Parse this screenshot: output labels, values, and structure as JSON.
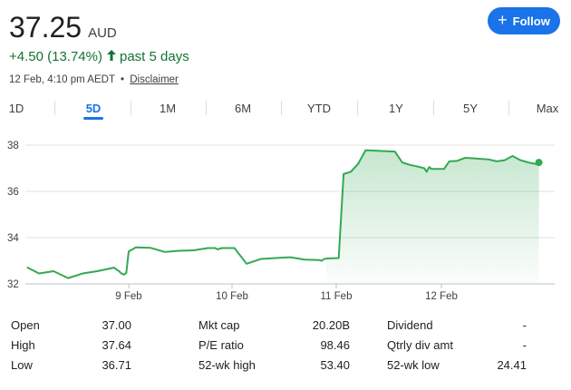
{
  "quote": {
    "price": "37.25",
    "currency": "AUD",
    "change": "+4.50 (13.74%)",
    "change_period": "past 5 days",
    "timestamp": "12 Feb, 4:10 pm AEDT",
    "separator": "•",
    "disclaimer": "Disclaimer",
    "up_color": "#137333"
  },
  "follow_button": {
    "label": "Follow",
    "icon": "plus-icon",
    "color": "#1a73e8"
  },
  "tabs": [
    {
      "label": "1D",
      "active": false
    },
    {
      "label": "5D",
      "active": true
    },
    {
      "label": "1M",
      "active": false
    },
    {
      "label": "6M",
      "active": false
    },
    {
      "label": "YTD",
      "active": false
    },
    {
      "label": "1Y",
      "active": false
    },
    {
      "label": "5Y",
      "active": false
    },
    {
      "label": "Max",
      "active": false
    }
  ],
  "chart_data": {
    "type": "area",
    "title": "",
    "xlabel": "",
    "ylabel": "",
    "ylim": [
      32,
      38.8
    ],
    "yticks": [
      "32",
      "34",
      "36",
      "38"
    ],
    "xticks": [
      "9 Feb",
      "10 Feb",
      "11 Feb",
      "12 Feb"
    ],
    "line_color": "#34a853",
    "grid": true,
    "series": [
      {
        "points": [
          [
            "6 Feb 10:10",
            32.72
          ],
          [
            "6 Feb 11:00",
            32.45
          ],
          [
            "6 Feb 12:00",
            32.55
          ],
          [
            "6 Feb 13:00",
            32.25
          ],
          [
            "6 Feb 14:00",
            32.45
          ],
          [
            "6 Feb 15:00",
            32.55
          ],
          [
            "6 Feb 16:00",
            32.68
          ],
          [
            "6 Feb 16:10",
            32.7
          ],
          [
            "6 Feb 16:20",
            32.62
          ],
          [
            "6 Feb 16:30",
            32.55
          ],
          [
            "6 Feb 16:40",
            32.45
          ],
          [
            "6 Feb 16:50",
            32.4
          ],
          [
            "6 Feb 17:00",
            32.47
          ],
          [
            "6 Feb 17:10",
            33.4
          ],
          [
            "9 Feb 10:30",
            33.58
          ],
          [
            "9 Feb 11:30",
            33.56
          ],
          [
            "9 Feb 12:30",
            33.38
          ],
          [
            "9 Feb 13:30",
            33.43
          ],
          [
            "9 Feb 14:30",
            33.45
          ],
          [
            "9 Feb 15:30",
            33.55
          ],
          [
            "9 Feb 16:00",
            33.55
          ],
          [
            "9 Feb 16:10",
            33.49
          ],
          [
            "9 Feb 16:20",
            33.53
          ],
          [
            "9 Feb 16:30",
            33.55
          ],
          [
            "10 Feb 10:10",
            33.55
          ],
          [
            "10 Feb 11:00",
            32.87
          ],
          [
            "10 Feb 12:00",
            33.08
          ],
          [
            "10 Feb 13:00",
            33.12
          ],
          [
            "10 Feb 14:00",
            33.15
          ],
          [
            "10 Feb 15:00",
            33.05
          ],
          [
            "10 Feb 16:00",
            33.03
          ],
          [
            "10 Feb 16:10",
            33.0
          ],
          [
            "10 Feb 16:20",
            33.07
          ],
          [
            "10 Feb 16:30",
            33.1
          ],
          [
            "11 Feb 10:10",
            33.12
          ],
          [
            "11 Feb 10:30",
            36.75
          ],
          [
            "11 Feb 11:00",
            36.85
          ],
          [
            "11 Feb 11:30",
            37.2
          ],
          [
            "11 Feb 12:00",
            37.78
          ],
          [
            "11 Feb 13:00",
            37.75
          ],
          [
            "11 Feb 14:00",
            37.72
          ],
          [
            "11 Feb 14:30",
            37.25
          ],
          [
            "11 Feb 15:00",
            37.15
          ],
          [
            "11 Feb 15:30",
            37.08
          ],
          [
            "11 Feb 16:00",
            37.0
          ],
          [
            "11 Feb 16:10",
            36.85
          ],
          [
            "11 Feb 16:20",
            37.05
          ],
          [
            "11 Feb 16:30",
            36.97
          ],
          [
            "12 Feb 10:10",
            36.97
          ],
          [
            "12 Feb 10:30",
            37.3
          ],
          [
            "12 Feb 11:00",
            37.32
          ],
          [
            "12 Feb 11:30",
            37.45
          ],
          [
            "12 Feb 12:00",
            37.43
          ],
          [
            "12 Feb 13:00",
            37.38
          ],
          [
            "12 Feb 13:30",
            37.3
          ],
          [
            "12 Feb 14:00",
            37.35
          ],
          [
            "12 Feb 14:30",
            37.53
          ],
          [
            "12 Feb 15:00",
            37.35
          ],
          [
            "12 Feb 15:30",
            37.25
          ],
          [
            "12 Feb 16:00",
            37.18
          ],
          [
            "12 Feb 16:10",
            37.25
          ]
        ]
      }
    ]
  },
  "stats": [
    {
      "label": "Open",
      "value": "37.00"
    },
    {
      "label": "High",
      "value": "37.64"
    },
    {
      "label": "Low",
      "value": "36.71"
    },
    {
      "label": "Mkt cap",
      "value": "20.20B"
    },
    {
      "label": "P/E ratio",
      "value": "98.46"
    },
    {
      "label": "52-wk high",
      "value": "53.40"
    },
    {
      "label": "Dividend",
      "value": "-"
    },
    {
      "label": "Qtrly div amt",
      "value": "-"
    },
    {
      "label": "52-wk low",
      "value": "24.41"
    }
  ]
}
